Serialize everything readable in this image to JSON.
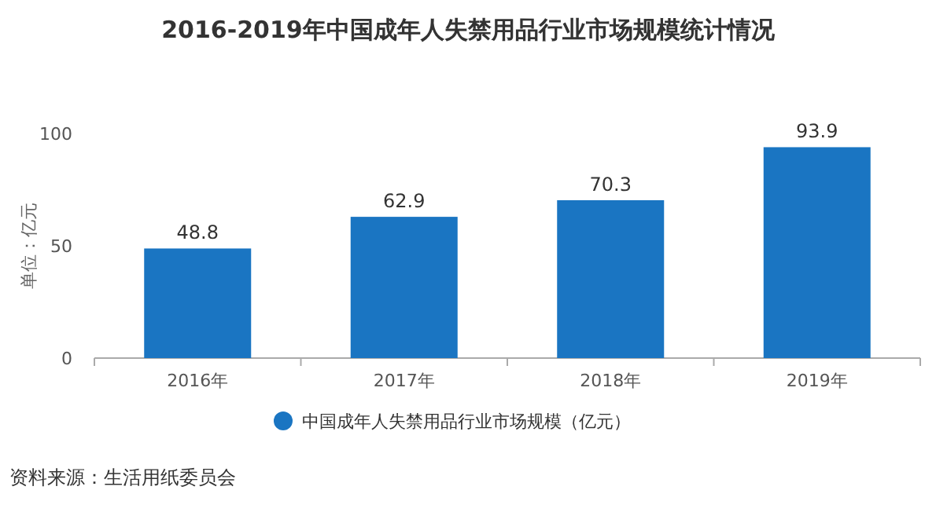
{
  "chart_data": {
    "type": "bar",
    "title": "2016-2019年中国成年人失禁用品行业市场规模统计情况",
    "ylabel": "单位：亿元",
    "categories": [
      "2016年",
      "2017年",
      "2018年",
      "2019年"
    ],
    "series": [
      {
        "name": "中国成年人失禁用品行业市场规模（亿元）",
        "color": "#1a75c2",
        "values": [
          48.8,
          62.9,
          70.3,
          93.9
        ]
      }
    ],
    "ylim": [
      0,
      100
    ],
    "yticks": [
      0,
      50,
      100
    ],
    "data_labels": true,
    "legend": "bottom",
    "annotations": [
      "资料来源：生活用纸委员会"
    ]
  }
}
